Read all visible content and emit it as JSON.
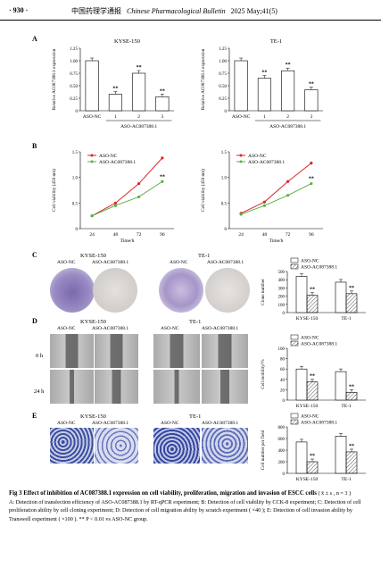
{
  "header": {
    "page_number": "· 930 ·",
    "journal_cn": "中国药理学通报",
    "journal_en": "Chinese Pharmacological Bulletin",
    "issue": "2025 May;41(5)"
  },
  "panel_labels": [
    "A",
    "B",
    "C",
    "D",
    "E"
  ],
  "panel_A": {
    "charts": [
      {
        "type": "bar",
        "title": "KYSE-150",
        "ylabel": "Relative AC087388.1 expression",
        "categories": [
          "ASO-NC",
          "1",
          "2",
          "3"
        ],
        "values": [
          1.0,
          0.33,
          0.75,
          0.28
        ],
        "sig": [
          "",
          "**",
          "**",
          "**"
        ],
        "ylim": [
          0,
          1.25
        ],
        "yticks": [
          "0",
          "0.25",
          "0.50",
          "0.75",
          "1.00",
          "1.25"
        ],
        "group_label": "ASO-AC087388.1"
      },
      {
        "type": "bar",
        "title": "TE-1",
        "ylabel": "Relative AC087388.1 expression",
        "categories": [
          "ASO-NC",
          "1",
          "2",
          "3"
        ],
        "values": [
          1.0,
          0.65,
          0.8,
          0.42
        ],
        "sig": [
          "",
          "**",
          "**",
          "**"
        ],
        "ylim": [
          0,
          1.25
        ],
        "yticks": [
          "0",
          "0.25",
          "0.50",
          "0.75",
          "1.00",
          "1.25"
        ],
        "group_label": "ASO-AC087388.1"
      }
    ]
  },
  "panel_B": {
    "legend": [
      "ASO-NC",
      "ASO-AC087388.1"
    ],
    "xlabel": "Time/h",
    "ylabel": "Cell viability (450 nm)",
    "x": [
      "24",
      "48",
      "72",
      "96"
    ],
    "yticks": [
      "0",
      "0.5",
      "1.0",
      "1.5"
    ],
    "charts": [
      {
        "series": [
          {
            "name": "ASO-NC",
            "values": [
              0.25,
              0.5,
              0.88,
              1.38
            ]
          },
          {
            "name": "ASO-AC087388.1",
            "values": [
              0.25,
              0.45,
              0.62,
              0.92
            ]
          }
        ],
        "sig": "**"
      },
      {
        "series": [
          {
            "name": "ASO-NC",
            "values": [
              0.3,
              0.52,
              0.92,
              1.28
            ]
          },
          {
            "name": "ASO-AC087388.1",
            "values": [
              0.28,
              0.45,
              0.65,
              0.88
            ]
          }
        ],
        "sig": "**"
      }
    ]
  },
  "panel_C": {
    "cell_lines": [
      "KYSE-150",
      "TE-1"
    ],
    "groups": [
      "ASO-NC",
      "ASO-AC087388.1"
    ],
    "chart": {
      "type": "bar",
      "ylabel": "Clone number",
      "legend": [
        "ASO-NC",
        "ASO-AC087388.1"
      ],
      "categories": [
        "KYSE-150",
        "TE-1"
      ],
      "yticks": [
        "0",
        "100",
        "200",
        "300",
        "400",
        "500"
      ],
      "ylim": [
        0,
        500
      ],
      "series": [
        {
          "name": "ASO-NC",
          "values": [
            440,
            370
          ]
        },
        {
          "name": "ASO-AC087388.1",
          "values": [
            210,
            230
          ]
        }
      ],
      "sig": [
        "**",
        "**"
      ]
    }
  },
  "panel_D": {
    "cell_lines": [
      "KYSE-150",
      "TE-1"
    ],
    "groups": [
      "ASO-NC",
      "ASO-AC087388.1"
    ],
    "rows": [
      "0 h",
      "24 h"
    ],
    "chart": {
      "type": "bar",
      "ylabel": "Cell mobility/%",
      "legend": [
        "ASO-NC",
        "ASO-AC087388.1"
      ],
      "categories": [
        "KYSE-150",
        "TE-1"
      ],
      "yticks": [
        "0",
        "20",
        "40",
        "60",
        "80",
        "100"
      ],
      "ylim": [
        0,
        100
      ],
      "series": [
        {
          "name": "ASO-NC",
          "values": [
            60,
            55
          ]
        },
        {
          "name": "ASO-AC087388.1",
          "values": [
            35,
            15
          ]
        }
      ],
      "sig": [
        "**",
        "**"
      ]
    }
  },
  "panel_E": {
    "cell_lines": [
      "KYSE-150",
      "TE-1"
    ],
    "groups": [
      "ASO-NC",
      "ASO-AC087388.1"
    ],
    "chart": {
      "type": "bar",
      "ylabel": "Cell number per field",
      "legend": [
        "ASO-NC",
        "ASO-AC087388.1"
      ],
      "categories": [
        "KYSE-150",
        "TE-1"
      ],
      "yticks": [
        "0",
        "200",
        "400",
        "600",
        "800"
      ],
      "ylim": [
        0,
        800
      ],
      "series": [
        {
          "name": "ASO-NC",
          "values": [
            540,
            640
          ]
        },
        {
          "name": "ASO-AC087388.1",
          "values": [
            200,
            370
          ]
        }
      ],
      "sig": [
        "**",
        "**"
      ]
    }
  },
  "caption": {
    "title": "Fig 3   Effect of inhibition of AC087388.1 expression on cell viability, proliferation, migration and invasion of ESCC cells",
    "stats": "( x̄ ± s , n = 3 )",
    "body": "A: Detection of transfection efficiency of ASO-AC087388.1 by RT-qPCR experiment; B: Detection of cell viability by CCK-8 experiment; C: Detection of cell proliferation ability by cell cloning experiment; D: Detection of cell migration ability by scratch experiment ( ×40 ); E: Detection of cell invasion ability by Transwell experiment ( ×100 ). ** P < 0.01 vs ASO-NC group."
  },
  "colors": {
    "red": "#d8262c",
    "green": "#5cb147",
    "dish_purple": "#8e7fb8",
    "dish_pale": "#d6d3d0",
    "transwell": "#5a6fb8"
  }
}
